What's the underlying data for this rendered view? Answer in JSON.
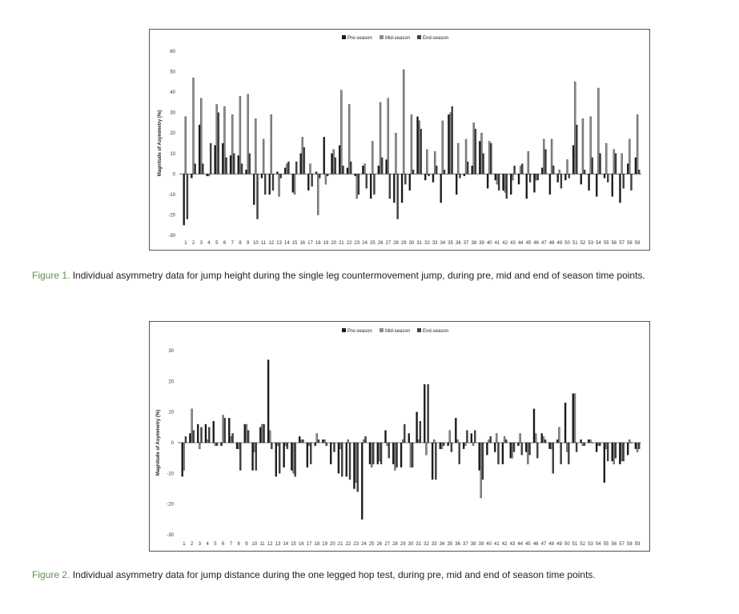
{
  "colors": {
    "pre_season": "#1a1a1a",
    "mid_season": "#8c8c8c",
    "end_season": "#444444",
    "caption_label": "#5e8f52"
  },
  "captions": [
    {
      "label": "Figure 1.",
      "text": "Individual asymmetry data for jump height during the single leg countermovement jump, during pre, mid and end of season time points."
    },
    {
      "label": "Figure 2.",
      "text": "Individual asymmetry data for jump distance during the one legged hop test, during pre, mid and end of season time points."
    }
  ],
  "chart_data": [
    {
      "type": "bar",
      "title": "",
      "ylabel": "Magnitude of Asymmetry (%)",
      "xlabel": "",
      "ylim": [
        -30,
        60
      ],
      "yticks": [
        -30,
        -20,
        -10,
        0,
        10,
        20,
        30,
        40,
        50,
        60
      ],
      "grid": false,
      "legend_position": "top-center",
      "categories": [
        "1",
        "2",
        "3",
        "4",
        "5",
        "6",
        "7",
        "8",
        "9",
        "10",
        "11",
        "12",
        "13",
        "14",
        "15",
        "16",
        "17",
        "18",
        "19",
        "20",
        "21",
        "22",
        "23",
        "24",
        "25",
        "26",
        "27",
        "28",
        "29",
        "30",
        "31",
        "32",
        "33",
        "34",
        "35",
        "36",
        "37",
        "38",
        "39",
        "40",
        "41",
        "42",
        "43",
        "44",
        "45",
        "46",
        "47",
        "48",
        "49",
        "50",
        "51",
        "52",
        "53",
        "54",
        "55",
        "56",
        "57",
        "58",
        "59"
      ],
      "series": [
        {
          "name": "Pre-season",
          "values": [
            -25,
            -2,
            24,
            -1,
            14,
            15,
            9,
            9,
            2,
            -15,
            -2,
            -10,
            1,
            3,
            -9,
            10,
            -8,
            1,
            18,
            10,
            14,
            3,
            -1,
            4,
            -12,
            4,
            7,
            -14,
            -14,
            -8,
            28,
            -3,
            -4,
            -14,
            29,
            -10,
            -1,
            4,
            16,
            -7,
            -3,
            -8,
            -10,
            -5,
            -12,
            -9,
            3,
            -10,
            -4,
            -3,
            14,
            -5,
            -8,
            -11,
            -2,
            -11,
            -14,
            5,
            8
          ],
          "end_values_note": ""
        },
        {
          "name": "Mid-season",
          "values": [
            28,
            47,
            37,
            -1,
            34,
            33,
            29,
            38,
            39,
            27,
            17,
            29,
            -11,
            5,
            -10,
            18,
            5,
            -20,
            -5,
            12,
            41,
            34,
            -12,
            5,
            16,
            35,
            37,
            20,
            51,
            29,
            26,
            12,
            11,
            26,
            30,
            15,
            17,
            25,
            20,
            16,
            -5,
            -9,
            -3,
            4,
            11,
            -3,
            17,
            17,
            2,
            7,
            45,
            27,
            28,
            42,
            15,
            12,
            10,
            17,
            29
          ]
        },
        {
          "name": "End-season",
          "values": [
            -22,
            5,
            5,
            15,
            30,
            8,
            10,
            5,
            10,
            -22,
            -10,
            -8,
            -2,
            6,
            6,
            13,
            -6,
            -2,
            -1,
            8,
            4,
            6,
            -10,
            -7,
            -10,
            8,
            -12,
            -22,
            -5,
            2,
            22,
            -1,
            4,
            2,
            33,
            -2,
            6,
            22,
            10,
            15,
            -8,
            -12,
            4,
            5,
            -4,
            -3,
            12,
            4,
            -7,
            -2,
            24,
            2,
            8,
            10,
            -4,
            10,
            -7,
            -8,
            2
          ]
        }
      ]
    },
    {
      "type": "bar",
      "title": "",
      "ylabel": "Magnitude of Asymmetry (%)",
      "xlabel": "",
      "ylim": [
        -30,
        30
      ],
      "yticks": [
        -30,
        -20,
        -10,
        0,
        10,
        20,
        30
      ],
      "grid": false,
      "legend_position": "top-center",
      "categories": [
        "1",
        "2",
        "3",
        "4",
        "5",
        "6",
        "7",
        "8",
        "9",
        "10",
        "11",
        "12",
        "13",
        "14",
        "15",
        "16",
        "17",
        "18",
        "19",
        "20",
        "21",
        "22",
        "23",
        "24",
        "25",
        "26",
        "27",
        "28",
        "29",
        "30",
        "31",
        "32",
        "33",
        "34",
        "35",
        "36",
        "37",
        "38",
        "39",
        "40",
        "41",
        "42",
        "43",
        "44",
        "45",
        "46",
        "47",
        "48",
        "49",
        "50",
        "51",
        "52",
        "53",
        "54",
        "55",
        "56",
        "57",
        "58",
        "59"
      ],
      "series": [
        {
          "name": "Pre-season",
          "values": [
            -11,
            3,
            6,
            6,
            7,
            -1,
            8,
            -2,
            6,
            -9,
            5,
            27,
            -11,
            -8,
            -9,
            2,
            -8,
            -1,
            1,
            -7,
            -10,
            -11,
            -15,
            -25,
            -7,
            -7,
            4,
            -7,
            -8,
            3,
            10,
            19,
            -12,
            -2,
            -1,
            8,
            -2,
            3,
            -9,
            -4,
            -3,
            -7,
            -5,
            -1,
            -3,
            11,
            3,
            -2,
            1,
            13,
            16,
            1,
            1,
            -3,
            -13,
            -6,
            -7,
            -4,
            -2
          ],
          "end_values_note": ""
        },
        {
          "name": "Mid-season",
          "values": [
            -9,
            11,
            -2,
            1,
            -1,
            9,
            2,
            -2,
            6,
            -3,
            6,
            4,
            -1,
            -1,
            -10,
            1,
            -1,
            3,
            1,
            0,
            -2,
            1,
            -13,
            1,
            -8,
            -6,
            -1,
            -9,
            1,
            -8,
            1,
            -4,
            1,
            -2,
            4,
            1,
            -1,
            -1,
            -18,
            1,
            3,
            2,
            -5,
            3,
            -7,
            3,
            2,
            -2,
            5,
            -3,
            16,
            -1,
            1,
            -1,
            -2,
            -7,
            -6,
            1,
            -3
          ],
          "end_values_note": ""
        },
        {
          "name": "End-season",
          "values": [
            2,
            4,
            5,
            5,
            -1,
            8,
            3,
            -9,
            4,
            -9,
            6,
            -2,
            -10,
            -2,
            -11,
            1,
            -7,
            1,
            -1,
            -3,
            -11,
            -12,
            -16,
            2,
            -7,
            -7,
            -5,
            -8,
            6,
            -8,
            7,
            19,
            -12,
            -1,
            -3,
            -7,
            4,
            4,
            -12,
            2,
            -7,
            1,
            -3,
            -4,
            -4,
            -5,
            1,
            -10,
            -7,
            -7,
            -3,
            -1,
            0,
            -1,
            -6,
            -5,
            -6,
            0,
            -2
          ]
        }
      ]
    }
  ]
}
